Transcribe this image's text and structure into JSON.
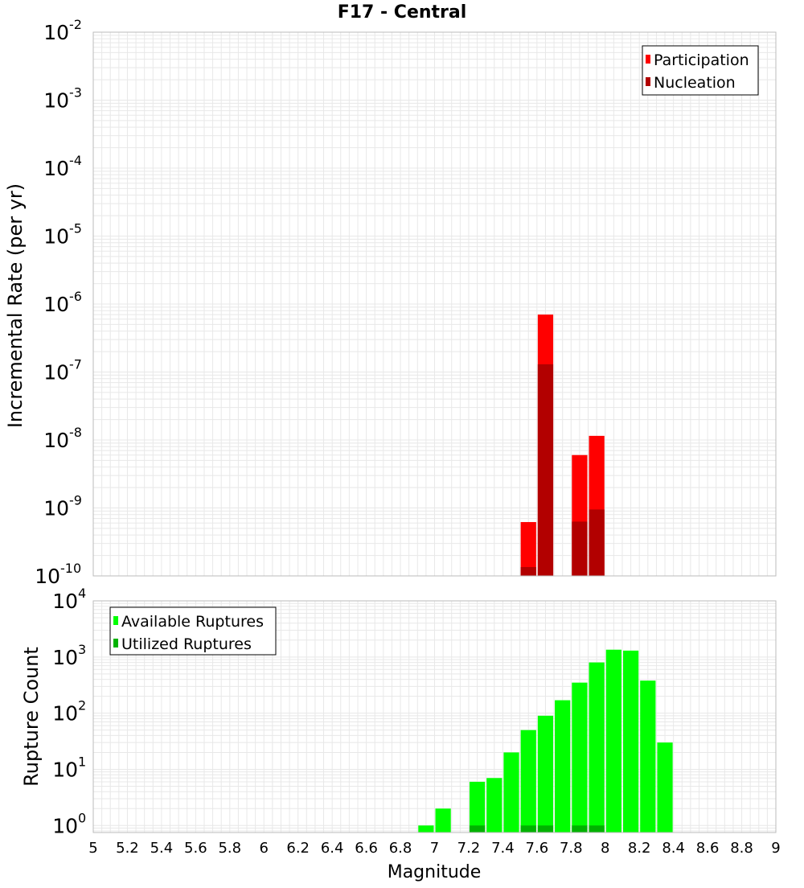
{
  "colors": {
    "participation": "#ff0000",
    "nucleation": "#b20000",
    "available": "#00ff00",
    "utilized": "#00b200",
    "gridline": "#e8e8e8",
    "axis_border": "#bbbbbb"
  },
  "chart_data": [
    {
      "type": "bar",
      "title": "F17 - Central",
      "xlabel": "",
      "ylabel": "Incremental Rate (per yr)",
      "yscale": "log",
      "xlim": [
        5,
        9
      ],
      "ylim": [
        1e-10,
        0.01
      ],
      "ytick_exponents": [
        -10,
        -9,
        -8,
        -7,
        -6,
        -5,
        -4,
        -3,
        -2
      ],
      "grid": true,
      "legend_position": "top-right",
      "x": [
        7.55,
        7.65,
        7.85,
        7.95
      ],
      "series": [
        {
          "name": "Participation",
          "values": [
            6.2e-10,
            7e-07,
            6e-09,
            1.15e-08
          ]
        },
        {
          "name": "Nucleation",
          "values": [
            1.35e-10,
            1.3e-07,
            6.3e-10,
            9.5e-10
          ]
        }
      ]
    },
    {
      "type": "bar",
      "title": "",
      "xlabel": "Magnitude",
      "ylabel": "Rupture Count",
      "yscale": "log",
      "xlim": [
        5,
        9
      ],
      "ylim": [
        0.75,
        10000
      ],
      "ytick_exponents": [
        0,
        1,
        2,
        3,
        4
      ],
      "xticks": [
        "5",
        "5.2",
        "5.4",
        "5.6",
        "5.8",
        "6",
        "6.2",
        "6.4",
        "6.6",
        "6.8",
        "7",
        "7.2",
        "7.4",
        "7.6",
        "7.8",
        "8",
        "8.2",
        "8.4",
        "8.6",
        "8.8",
        "9"
      ],
      "grid": true,
      "legend_position": "top-left",
      "x": [
        6.95,
        7.05,
        7.25,
        7.35,
        7.45,
        7.55,
        7.65,
        7.75,
        7.85,
        7.95,
        8.05,
        8.15,
        8.25,
        8.35
      ],
      "series": [
        {
          "name": "Available Ruptures",
          "values": [
            1,
            2,
            6,
            7,
            20,
            50,
            90,
            170,
            350,
            800,
            1350,
            1300,
            380,
            30
          ]
        },
        {
          "name": "Utilized Ruptures",
          "values": [
            0,
            0,
            1,
            0,
            0,
            1,
            1,
            0,
            1,
            1,
            0,
            0,
            0,
            0
          ]
        }
      ]
    }
  ]
}
